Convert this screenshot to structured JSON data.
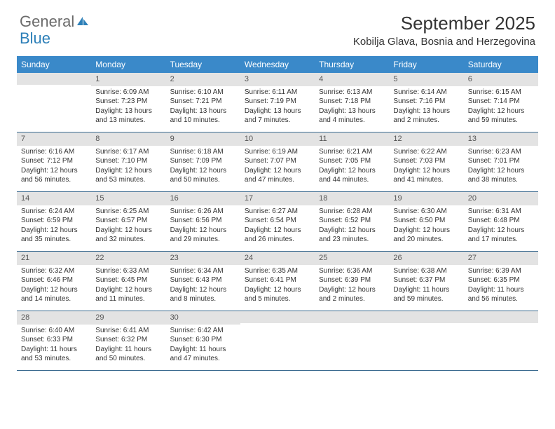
{
  "logo": {
    "general": "General",
    "blue": "Blue"
  },
  "title": "September 2025",
  "location": "Kobilja Glava, Bosnia and Herzegovina",
  "colors": {
    "header_bg": "#3a89c9",
    "header_text": "#ffffff",
    "daynum_bg": "#e3e3e3",
    "border": "#3a6a8f",
    "logo_gray": "#6b6b6b",
    "logo_blue": "#2c7fb8"
  },
  "day_names": [
    "Sunday",
    "Monday",
    "Tuesday",
    "Wednesday",
    "Thursday",
    "Friday",
    "Saturday"
  ],
  "weeks": [
    [
      {
        "n": "",
        "sr": "",
        "ss": "",
        "dl": ""
      },
      {
        "n": "1",
        "sr": "Sunrise: 6:09 AM",
        "ss": "Sunset: 7:23 PM",
        "dl": "Daylight: 13 hours and 13 minutes."
      },
      {
        "n": "2",
        "sr": "Sunrise: 6:10 AM",
        "ss": "Sunset: 7:21 PM",
        "dl": "Daylight: 13 hours and 10 minutes."
      },
      {
        "n": "3",
        "sr": "Sunrise: 6:11 AM",
        "ss": "Sunset: 7:19 PM",
        "dl": "Daylight: 13 hours and 7 minutes."
      },
      {
        "n": "4",
        "sr": "Sunrise: 6:13 AM",
        "ss": "Sunset: 7:18 PM",
        "dl": "Daylight: 13 hours and 4 minutes."
      },
      {
        "n": "5",
        "sr": "Sunrise: 6:14 AM",
        "ss": "Sunset: 7:16 PM",
        "dl": "Daylight: 13 hours and 2 minutes."
      },
      {
        "n": "6",
        "sr": "Sunrise: 6:15 AM",
        "ss": "Sunset: 7:14 PM",
        "dl": "Daylight: 12 hours and 59 minutes."
      }
    ],
    [
      {
        "n": "7",
        "sr": "Sunrise: 6:16 AM",
        "ss": "Sunset: 7:12 PM",
        "dl": "Daylight: 12 hours and 56 minutes."
      },
      {
        "n": "8",
        "sr": "Sunrise: 6:17 AM",
        "ss": "Sunset: 7:10 PM",
        "dl": "Daylight: 12 hours and 53 minutes."
      },
      {
        "n": "9",
        "sr": "Sunrise: 6:18 AM",
        "ss": "Sunset: 7:09 PM",
        "dl": "Daylight: 12 hours and 50 minutes."
      },
      {
        "n": "10",
        "sr": "Sunrise: 6:19 AM",
        "ss": "Sunset: 7:07 PM",
        "dl": "Daylight: 12 hours and 47 minutes."
      },
      {
        "n": "11",
        "sr": "Sunrise: 6:21 AM",
        "ss": "Sunset: 7:05 PM",
        "dl": "Daylight: 12 hours and 44 minutes."
      },
      {
        "n": "12",
        "sr": "Sunrise: 6:22 AM",
        "ss": "Sunset: 7:03 PM",
        "dl": "Daylight: 12 hours and 41 minutes."
      },
      {
        "n": "13",
        "sr": "Sunrise: 6:23 AM",
        "ss": "Sunset: 7:01 PM",
        "dl": "Daylight: 12 hours and 38 minutes."
      }
    ],
    [
      {
        "n": "14",
        "sr": "Sunrise: 6:24 AM",
        "ss": "Sunset: 6:59 PM",
        "dl": "Daylight: 12 hours and 35 minutes."
      },
      {
        "n": "15",
        "sr": "Sunrise: 6:25 AM",
        "ss": "Sunset: 6:57 PM",
        "dl": "Daylight: 12 hours and 32 minutes."
      },
      {
        "n": "16",
        "sr": "Sunrise: 6:26 AM",
        "ss": "Sunset: 6:56 PM",
        "dl": "Daylight: 12 hours and 29 minutes."
      },
      {
        "n": "17",
        "sr": "Sunrise: 6:27 AM",
        "ss": "Sunset: 6:54 PM",
        "dl": "Daylight: 12 hours and 26 minutes."
      },
      {
        "n": "18",
        "sr": "Sunrise: 6:28 AM",
        "ss": "Sunset: 6:52 PM",
        "dl": "Daylight: 12 hours and 23 minutes."
      },
      {
        "n": "19",
        "sr": "Sunrise: 6:30 AM",
        "ss": "Sunset: 6:50 PM",
        "dl": "Daylight: 12 hours and 20 minutes."
      },
      {
        "n": "20",
        "sr": "Sunrise: 6:31 AM",
        "ss": "Sunset: 6:48 PM",
        "dl": "Daylight: 12 hours and 17 minutes."
      }
    ],
    [
      {
        "n": "21",
        "sr": "Sunrise: 6:32 AM",
        "ss": "Sunset: 6:46 PM",
        "dl": "Daylight: 12 hours and 14 minutes."
      },
      {
        "n": "22",
        "sr": "Sunrise: 6:33 AM",
        "ss": "Sunset: 6:45 PM",
        "dl": "Daylight: 12 hours and 11 minutes."
      },
      {
        "n": "23",
        "sr": "Sunrise: 6:34 AM",
        "ss": "Sunset: 6:43 PM",
        "dl": "Daylight: 12 hours and 8 minutes."
      },
      {
        "n": "24",
        "sr": "Sunrise: 6:35 AM",
        "ss": "Sunset: 6:41 PM",
        "dl": "Daylight: 12 hours and 5 minutes."
      },
      {
        "n": "25",
        "sr": "Sunrise: 6:36 AM",
        "ss": "Sunset: 6:39 PM",
        "dl": "Daylight: 12 hours and 2 minutes."
      },
      {
        "n": "26",
        "sr": "Sunrise: 6:38 AM",
        "ss": "Sunset: 6:37 PM",
        "dl": "Daylight: 11 hours and 59 minutes."
      },
      {
        "n": "27",
        "sr": "Sunrise: 6:39 AM",
        "ss": "Sunset: 6:35 PM",
        "dl": "Daylight: 11 hours and 56 minutes."
      }
    ],
    [
      {
        "n": "28",
        "sr": "Sunrise: 6:40 AM",
        "ss": "Sunset: 6:33 PM",
        "dl": "Daylight: 11 hours and 53 minutes."
      },
      {
        "n": "29",
        "sr": "Sunrise: 6:41 AM",
        "ss": "Sunset: 6:32 PM",
        "dl": "Daylight: 11 hours and 50 minutes."
      },
      {
        "n": "30",
        "sr": "Sunrise: 6:42 AM",
        "ss": "Sunset: 6:30 PM",
        "dl": "Daylight: 11 hours and 47 minutes."
      },
      {
        "n": "",
        "sr": "",
        "ss": "",
        "dl": ""
      },
      {
        "n": "",
        "sr": "",
        "ss": "",
        "dl": ""
      },
      {
        "n": "",
        "sr": "",
        "ss": "",
        "dl": ""
      },
      {
        "n": "",
        "sr": "",
        "ss": "",
        "dl": ""
      }
    ]
  ]
}
